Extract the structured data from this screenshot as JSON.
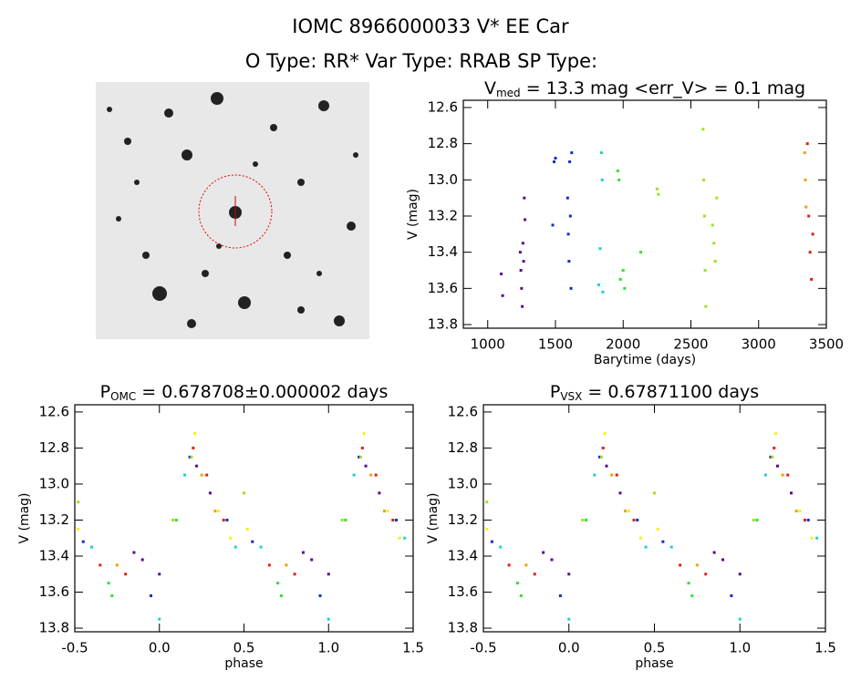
{
  "header": {
    "title": "IOMC 8966000033   V* EE Car",
    "subtitle": "O Type: RR*  Var Type: RRAB  SP Type:"
  },
  "chart_data": [
    {
      "type": "scatter",
      "title_main": "V",
      "title_sub": "med",
      "title_rest": " = 13.3 mag <err_V> = 0.1 mag",
      "xlabel": "Barytime (days)",
      "ylabel": "V (mag)",
      "xlim": [
        820,
        3500
      ],
      "ylim": [
        13.82,
        12.56
      ],
      "xticks": [
        1000,
        1500,
        2000,
        2500,
        3000,
        3500
      ],
      "yticks": [
        12.6,
        12.8,
        {
          "value": 13,
          "label": "13.0"
        },
        13.2,
        13.4,
        13.6,
        13.8
      ],
      "series": [
        {
          "color": "#5a0a8a",
          "x": [
            1100,
            1110,
            1240,
            1245,
            1250,
            1255,
            1260,
            1265,
            1270,
            1275
          ],
          "values": [
            13.52,
            13.64,
            13.4,
            13.5,
            13.6,
            13.7,
            13.35,
            13.45,
            13.1,
            13.22
          ]
        },
        {
          "color": "#1030c0",
          "x": [
            1480,
            1490,
            1500,
            1590,
            1595,
            1600,
            1605,
            1610,
            1615,
            1620
          ],
          "values": [
            13.25,
            12.9,
            12.88,
            13.1,
            13.3,
            13.45,
            12.9,
            13.2,
            13.6,
            12.85
          ]
        },
        {
          "color": "#20d0d0",
          "x": [
            1820,
            1830,
            1840,
            1845,
            1850
          ],
          "values": [
            13.58,
            13.38,
            12.85,
            13.0,
            13.62
          ]
        },
        {
          "color": "#30e030",
          "x": [
            1960,
            1970,
            1980,
            2000,
            2010,
            2130
          ],
          "values": [
            12.95,
            13.0,
            13.55,
            13.5,
            13.6,
            13.4
          ]
        },
        {
          "color": "#a0e020",
          "x": [
            2250,
            2260,
            2590,
            2595,
            2600,
            2605,
            2610,
            2660,
            2670,
            2680,
            2690
          ],
          "values": [
            13.05,
            13.08,
            12.72,
            13.0,
            13.2,
            13.5,
            13.7,
            13.25,
            13.35,
            13.45,
            13.1
          ]
        },
        {
          "color": "#f0a000",
          "x": [
            3340,
            3345,
            3350
          ],
          "values": [
            12.85,
            13.0,
            13.15
          ]
        },
        {
          "color": "#e02010",
          "x": [
            3360,
            3370,
            3380,
            3390,
            3400
          ],
          "values": [
            12.8,
            13.2,
            13.4,
            13.55,
            13.3
          ]
        }
      ]
    },
    {
      "type": "scatter",
      "title_main": "P",
      "title_sub": "OMC",
      "title_rest": " = 0.678708±0.000002 days",
      "xlabel": "phase",
      "ylabel": "V (mag)",
      "xlim": [
        -0.5,
        1.5
      ],
      "ylim": [
        13.82,
        12.56
      ],
      "xticks": [
        -0.5,
        {
          "value": 0,
          "label": "0.0"
        },
        0.5,
        {
          "value": 1,
          "label": "1.0"
        },
        1.5
      ],
      "yticks": [
        12.6,
        12.8,
        {
          "value": 13,
          "label": "13.0"
        },
        13.2,
        13.4,
        13.6,
        13.8
      ],
      "series": [
        {
          "color": "#5a0a8a",
          "x": [
            -0.15,
            -0.1,
            0.0,
            0.22,
            0.3,
            0.85,
            0.9,
            1.0,
            1.22,
            1.3
          ],
          "values": [
            13.38,
            13.42,
            13.5,
            12.9,
            13.05,
            13.38,
            13.42,
            13.5,
            12.9,
            13.05
          ]
        },
        {
          "color": "#1030c0",
          "x": [
            -0.45,
            -0.05,
            0.18,
            0.4,
            0.55,
            0.95,
            1.18,
            1.4
          ],
          "values": [
            13.32,
            13.62,
            12.85,
            13.2,
            13.32,
            13.62,
            12.85,
            13.2
          ]
        },
        {
          "color": "#20d0d0",
          "x": [
            -0.4,
            0.0,
            0.15,
            0.45,
            0.6,
            1.0,
            1.15,
            1.45
          ],
          "values": [
            13.35,
            13.75,
            12.95,
            13.35,
            13.35,
            13.75,
            12.95,
            13.3
          ]
        },
        {
          "color": "#30e030",
          "x": [
            -0.3,
            -0.28,
            0.1,
            0.7,
            0.72,
            1.1
          ],
          "values": [
            13.55,
            13.62,
            13.2,
            13.55,
            13.62,
            13.2
          ]
        },
        {
          "color": "#a0e020",
          "x": [
            -0.48,
            0.08,
            0.19,
            0.5,
            1.08,
            1.19
          ],
          "values": [
            13.1,
            13.2,
            12.85,
            13.05,
            13.2,
            12.85
          ]
        },
        {
          "color": "#f0f020",
          "x": [
            -0.48,
            0.21,
            0.35,
            0.42,
            0.52,
            1.21,
            1.35,
            1.42
          ],
          "values": [
            13.25,
            12.72,
            13.15,
            13.3,
            13.25,
            12.72,
            13.15,
            13.3
          ]
        },
        {
          "color": "#f0a000",
          "x": [
            -0.25,
            0.25,
            0.33,
            0.75,
            1.25,
            1.33
          ],
          "values": [
            13.45,
            12.95,
            13.15,
            13.45,
            12.95,
            13.15
          ]
        },
        {
          "color": "#e02010",
          "x": [
            -0.35,
            -0.2,
            0.2,
            0.28,
            0.38,
            0.65,
            0.8,
            1.2,
            1.28,
            1.38
          ],
          "values": [
            13.45,
            13.5,
            12.8,
            12.95,
            13.2,
            13.45,
            13.5,
            12.8,
            12.95,
            13.2
          ]
        }
      ]
    },
    {
      "type": "scatter",
      "title_main": "P",
      "title_sub": "VSX",
      "title_rest": " = 0.67871100 days",
      "xlabel": "phase",
      "ylabel": "V (mag)",
      "xlim": [
        -0.5,
        1.5
      ],
      "ylim": [
        13.82,
        12.56
      ],
      "xticks": [
        -0.5,
        {
          "value": 0,
          "label": "0.0"
        },
        0.5,
        {
          "value": 1,
          "label": "1.0"
        },
        1.5
      ],
      "yticks": [
        12.6,
        12.8,
        {
          "value": 13,
          "label": "13.0"
        },
        13.2,
        13.4,
        13.6,
        13.8
      ],
      "series": [
        {
          "color": "#5a0a8a",
          "x": [
            -0.15,
            -0.1,
            0.0,
            0.22,
            0.3,
            0.85,
            0.9,
            1.0,
            1.22,
            1.3
          ],
          "values": [
            13.38,
            13.42,
            13.5,
            12.9,
            13.05,
            13.38,
            13.42,
            13.5,
            12.9,
            13.05
          ]
        },
        {
          "color": "#1030c0",
          "x": [
            -0.45,
            -0.05,
            0.18,
            0.4,
            0.55,
            0.95,
            1.18,
            1.4
          ],
          "values": [
            13.32,
            13.62,
            12.85,
            13.2,
            13.32,
            13.62,
            12.85,
            13.2
          ]
        },
        {
          "color": "#20d0d0",
          "x": [
            -0.4,
            0.0,
            0.15,
            0.45,
            0.6,
            1.0,
            1.15,
            1.45
          ],
          "values": [
            13.35,
            13.75,
            12.95,
            13.35,
            13.35,
            13.75,
            12.95,
            13.3
          ]
        },
        {
          "color": "#30e030",
          "x": [
            -0.3,
            -0.28,
            0.1,
            0.7,
            0.72,
            1.1
          ],
          "values": [
            13.55,
            13.62,
            13.2,
            13.55,
            13.62,
            13.2
          ]
        },
        {
          "color": "#a0e020",
          "x": [
            -0.48,
            0.08,
            0.19,
            0.5,
            1.08,
            1.19
          ],
          "values": [
            13.1,
            13.2,
            12.85,
            13.05,
            13.2,
            12.85
          ]
        },
        {
          "color": "#f0f020",
          "x": [
            -0.48,
            0.21,
            0.35,
            0.42,
            0.52,
            1.21,
            1.35,
            1.42
          ],
          "values": [
            13.25,
            12.72,
            13.15,
            13.3,
            13.25,
            12.72,
            13.15,
            13.3
          ]
        },
        {
          "color": "#f0a000",
          "x": [
            -0.25,
            0.25,
            0.33,
            0.75,
            1.25,
            1.33
          ],
          "values": [
            13.45,
            12.95,
            13.15,
            13.45,
            12.95,
            13.15
          ]
        },
        {
          "color": "#e02010",
          "x": [
            -0.35,
            -0.2,
            0.2,
            0.28,
            0.38,
            0.65,
            0.8,
            1.2,
            1.28,
            1.38
          ],
          "values": [
            13.45,
            13.5,
            12.8,
            12.95,
            13.2,
            13.45,
            13.5,
            12.8,
            12.95,
            13.2
          ]
        }
      ]
    }
  ]
}
